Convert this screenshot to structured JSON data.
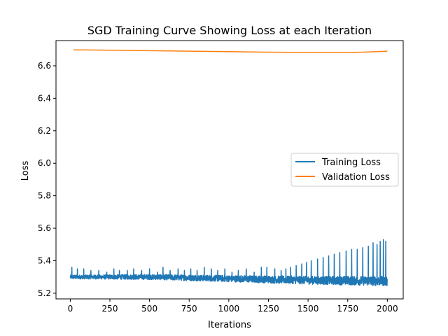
{
  "chart_data": {
    "type": "line",
    "title": "SGD Training Curve Showing Loss at each Iteration",
    "xlabel": "Iterations",
    "ylabel": "Loss",
    "xlim": [
      -90,
      2100
    ],
    "ylim": [
      5.165,
      6.755
    ],
    "x_ticks": [
      0,
      250,
      500,
      750,
      1000,
      1250,
      1500,
      1750,
      2000
    ],
    "x_tick_labels": [
      "0",
      "250",
      "500",
      "750",
      "1000",
      "1250",
      "1500",
      "1750",
      "2000"
    ],
    "y_ticks": [
      5.2,
      5.4,
      5.6,
      5.8,
      6.0,
      6.2,
      6.4,
      6.6
    ],
    "y_tick_labels": [
      "5.2",
      "5.4",
      "5.6",
      "5.8",
      "6.0",
      "6.2",
      "6.4",
      "6.6"
    ],
    "grid": false,
    "legend_position": "center-right",
    "series": [
      {
        "name": "Training Loss",
        "color": "#1f77b4",
        "baseline": [
          [
            0,
            5.3
          ],
          [
            500,
            5.3
          ],
          [
            1000,
            5.29
          ],
          [
            1500,
            5.28
          ],
          [
            2000,
            5.275
          ]
        ],
        "noise_amplitude": [
          [
            0,
            0.012
          ],
          [
            1000,
            0.02
          ],
          [
            2000,
            0.03
          ]
        ],
        "spikes": [
          [
            10,
            5.36
          ],
          [
            45,
            5.35
          ],
          [
            85,
            5.35
          ],
          [
            130,
            5.34
          ],
          [
            180,
            5.34
          ],
          [
            230,
            5.33
          ],
          [
            275,
            5.35
          ],
          [
            310,
            5.34
          ],
          [
            360,
            5.34
          ],
          [
            400,
            5.35
          ],
          [
            450,
            5.34
          ],
          [
            500,
            5.35
          ],
          [
            550,
            5.33
          ],
          [
            585,
            5.36
          ],
          [
            630,
            5.34
          ],
          [
            680,
            5.35
          ],
          [
            720,
            5.34
          ],
          [
            760,
            5.35
          ],
          [
            800,
            5.34
          ],
          [
            845,
            5.36
          ],
          [
            890,
            5.35
          ],
          [
            930,
            5.34
          ],
          [
            975,
            5.35
          ],
          [
            1020,
            5.33
          ],
          [
            1060,
            5.34
          ],
          [
            1110,
            5.35
          ],
          [
            1160,
            5.33
          ],
          [
            1205,
            5.36
          ],
          [
            1240,
            5.36
          ],
          [
            1290,
            5.35
          ],
          [
            1330,
            5.34
          ],
          [
            1360,
            5.35
          ],
          [
            1390,
            5.36
          ],
          [
            1425,
            5.37
          ],
          [
            1460,
            5.38
          ],
          [
            1490,
            5.39
          ],
          [
            1520,
            5.4
          ],
          [
            1560,
            5.41
          ],
          [
            1595,
            5.42
          ],
          [
            1630,
            5.43
          ],
          [
            1665,
            5.44
          ],
          [
            1700,
            5.45
          ],
          [
            1740,
            5.46
          ],
          [
            1775,
            5.47
          ],
          [
            1810,
            5.47
          ],
          [
            1845,
            5.48
          ],
          [
            1880,
            5.49
          ],
          [
            1910,
            5.51
          ],
          [
            1935,
            5.5
          ],
          [
            1955,
            5.52
          ],
          [
            1975,
            5.53
          ],
          [
            1990,
            5.52
          ]
        ]
      },
      {
        "name": "Validation Loss",
        "color": "#ff7f0e",
        "x": [
          20,
          250,
          500,
          750,
          1000,
          1250,
          1500,
          1600,
          1750,
          1850,
          2000
        ],
        "y": [
          6.698,
          6.696,
          6.693,
          6.69,
          6.687,
          6.684,
          6.682,
          6.681,
          6.682,
          6.684,
          6.69
        ]
      }
    ]
  }
}
